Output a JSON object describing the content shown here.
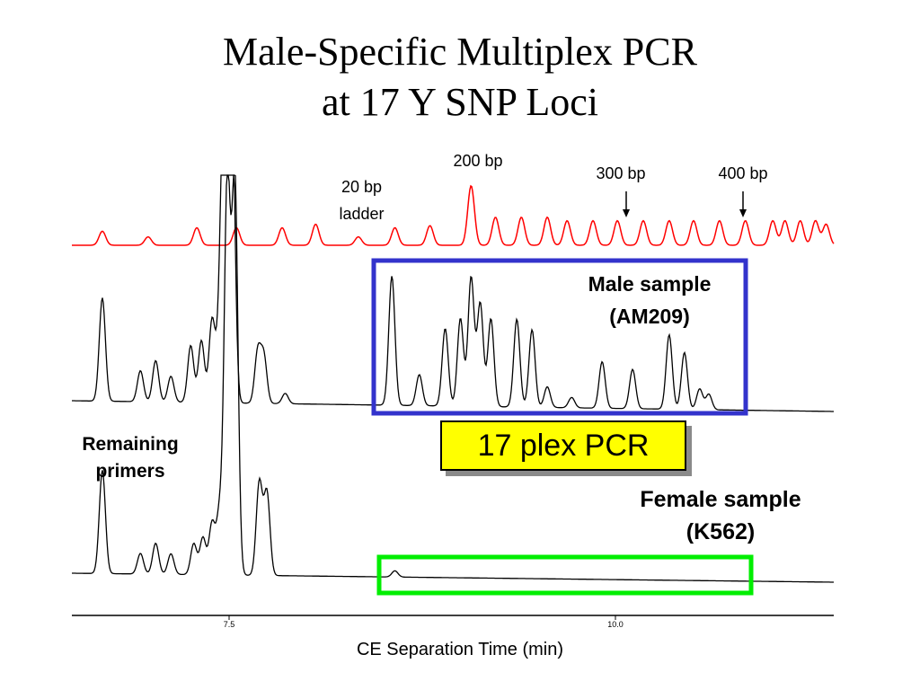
{
  "title": {
    "line1": "Male-Specific Multiplex PCR",
    "line2": "at 17 Y SNP Loci"
  },
  "annotations": {
    "ladder_20bp_line1": "20 bp",
    "ladder_20bp_line2": "ladder",
    "bp200": "200 bp",
    "bp300": "300 bp",
    "bp400": "400 bp",
    "male_line1": "Male sample",
    "male_line2": "(AM209)",
    "remaining_line1": "Remaining",
    "remaining_line2": "primers",
    "plex_box": "17 plex PCR",
    "female_line1": "Female sample",
    "female_line2": "(K562)"
  },
  "colors": {
    "ladder": "#ff0000",
    "trace": "#000000",
    "male_box": "#3333cc",
    "female_box": "#00ee00",
    "plex_fill": "#ffff00"
  },
  "chart_data": {
    "type": "line",
    "title": "Male-Specific Multiplex PCR at 17 Y SNP Loci",
    "xlabel": "CE Separation Time (min)",
    "ylabel": "",
    "xlim": [
      6.5,
      11.5
    ],
    "xticks": [
      7.5,
      10.0
    ],
    "xtick_labels": [
      "7.5",
      "10.0"
    ],
    "grid": false,
    "series": [
      {
        "name": "20 bp ladder",
        "baseline": 0,
        "peaks": [
          [
            6.7,
            0.2
          ],
          [
            7.0,
            0.12
          ],
          [
            7.32,
            0.25
          ],
          [
            7.58,
            0.25
          ],
          [
            7.88,
            0.25
          ],
          [
            8.1,
            0.3
          ],
          [
            8.38,
            0.12
          ],
          [
            8.62,
            0.25
          ],
          [
            8.85,
            0.28
          ],
          [
            9.12,
            0.85
          ],
          [
            9.28,
            0.4
          ],
          [
            9.45,
            0.4
          ],
          [
            9.62,
            0.4
          ],
          [
            9.75,
            0.35
          ],
          [
            9.92,
            0.35
          ],
          [
            10.08,
            0.35
          ],
          [
            10.25,
            0.35
          ],
          [
            10.42,
            0.35
          ],
          [
            10.58,
            0.35
          ],
          [
            10.75,
            0.35
          ],
          [
            10.92,
            0.35
          ],
          [
            11.1,
            0.35
          ],
          [
            11.18,
            0.35
          ],
          [
            11.28,
            0.35
          ],
          [
            11.38,
            0.35
          ],
          [
            11.45,
            0.3
          ]
        ]
      },
      {
        "name": "Male sample (AM209)",
        "baseline": 0,
        "peaks": [
          [
            6.7,
            1.0
          ],
          [
            6.95,
            0.3
          ],
          [
            7.05,
            0.4
          ],
          [
            7.15,
            0.25
          ],
          [
            7.28,
            0.55
          ],
          [
            7.35,
            0.6
          ],
          [
            7.42,
            0.8
          ],
          [
            7.47,
            0.6
          ],
          [
            7.5,
            3.0
          ],
          [
            7.55,
            3.0
          ],
          [
            7.72,
            0.5
          ],
          [
            7.76,
            0.45
          ],
          [
            7.9,
            0.1
          ],
          [
            8.6,
            1.25
          ],
          [
            8.78,
            0.3
          ],
          [
            8.95,
            0.75
          ],
          [
            9.05,
            0.85
          ],
          [
            9.12,
            1.25
          ],
          [
            9.18,
            1.0
          ],
          [
            9.25,
            0.85
          ],
          [
            9.42,
            0.85
          ],
          [
            9.52,
            0.75
          ],
          [
            9.62,
            0.2
          ],
          [
            9.78,
            0.1
          ],
          [
            9.98,
            0.45
          ],
          [
            10.18,
            0.38
          ],
          [
            10.42,
            0.72
          ],
          [
            10.52,
            0.55
          ],
          [
            10.62,
            0.2
          ],
          [
            10.68,
            0.15
          ]
        ]
      },
      {
        "name": "Female sample (K562)",
        "baseline": 0,
        "peaks": [
          [
            6.7,
            0.5
          ],
          [
            6.95,
            0.1
          ],
          [
            7.05,
            0.15
          ],
          [
            7.15,
            0.1
          ],
          [
            7.3,
            0.15
          ],
          [
            7.36,
            0.18
          ],
          [
            7.42,
            0.25
          ],
          [
            7.47,
            0.3
          ],
          [
            7.52,
            1.9
          ],
          [
            7.57,
            1.9
          ],
          [
            7.73,
            0.45
          ],
          [
            7.78,
            0.4
          ],
          [
            8.62,
            0.03
          ]
        ]
      }
    ]
  }
}
